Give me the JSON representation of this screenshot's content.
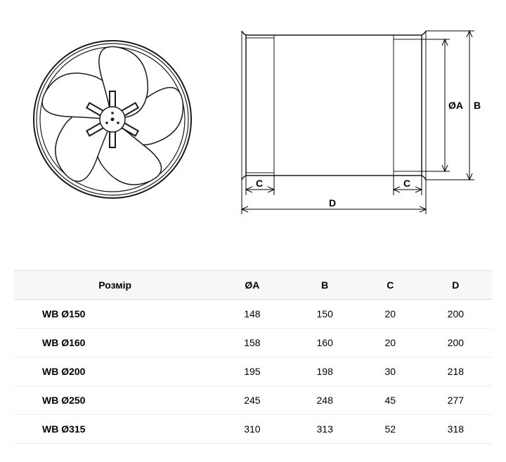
{
  "diagram": {
    "labels": {
      "diameter_a": "ØA",
      "b": "B",
      "c": "C",
      "d": "D"
    },
    "stroke_color": "#1a1a1a",
    "stroke_width": 1.5,
    "blade_fill": "#ffffff"
  },
  "table": {
    "columns": [
      "Розмір",
      "ØA",
      "B",
      "C",
      "D"
    ],
    "rows": [
      [
        "WB Ø150",
        "148",
        "150",
        "20",
        "200"
      ],
      [
        "WB Ø160",
        "158",
        "160",
        "20",
        "200"
      ],
      [
        "WB Ø200",
        "195",
        "198",
        "30",
        "218"
      ],
      [
        "WB Ø250",
        "245",
        "248",
        "45",
        "277"
      ],
      [
        "WB Ø315",
        "310",
        "313",
        "52",
        "318"
      ]
    ],
    "header_bg": "#f7f7f7",
    "border_color": "#dddddd",
    "row_border": "#eeeeee",
    "font_size": 14
  }
}
